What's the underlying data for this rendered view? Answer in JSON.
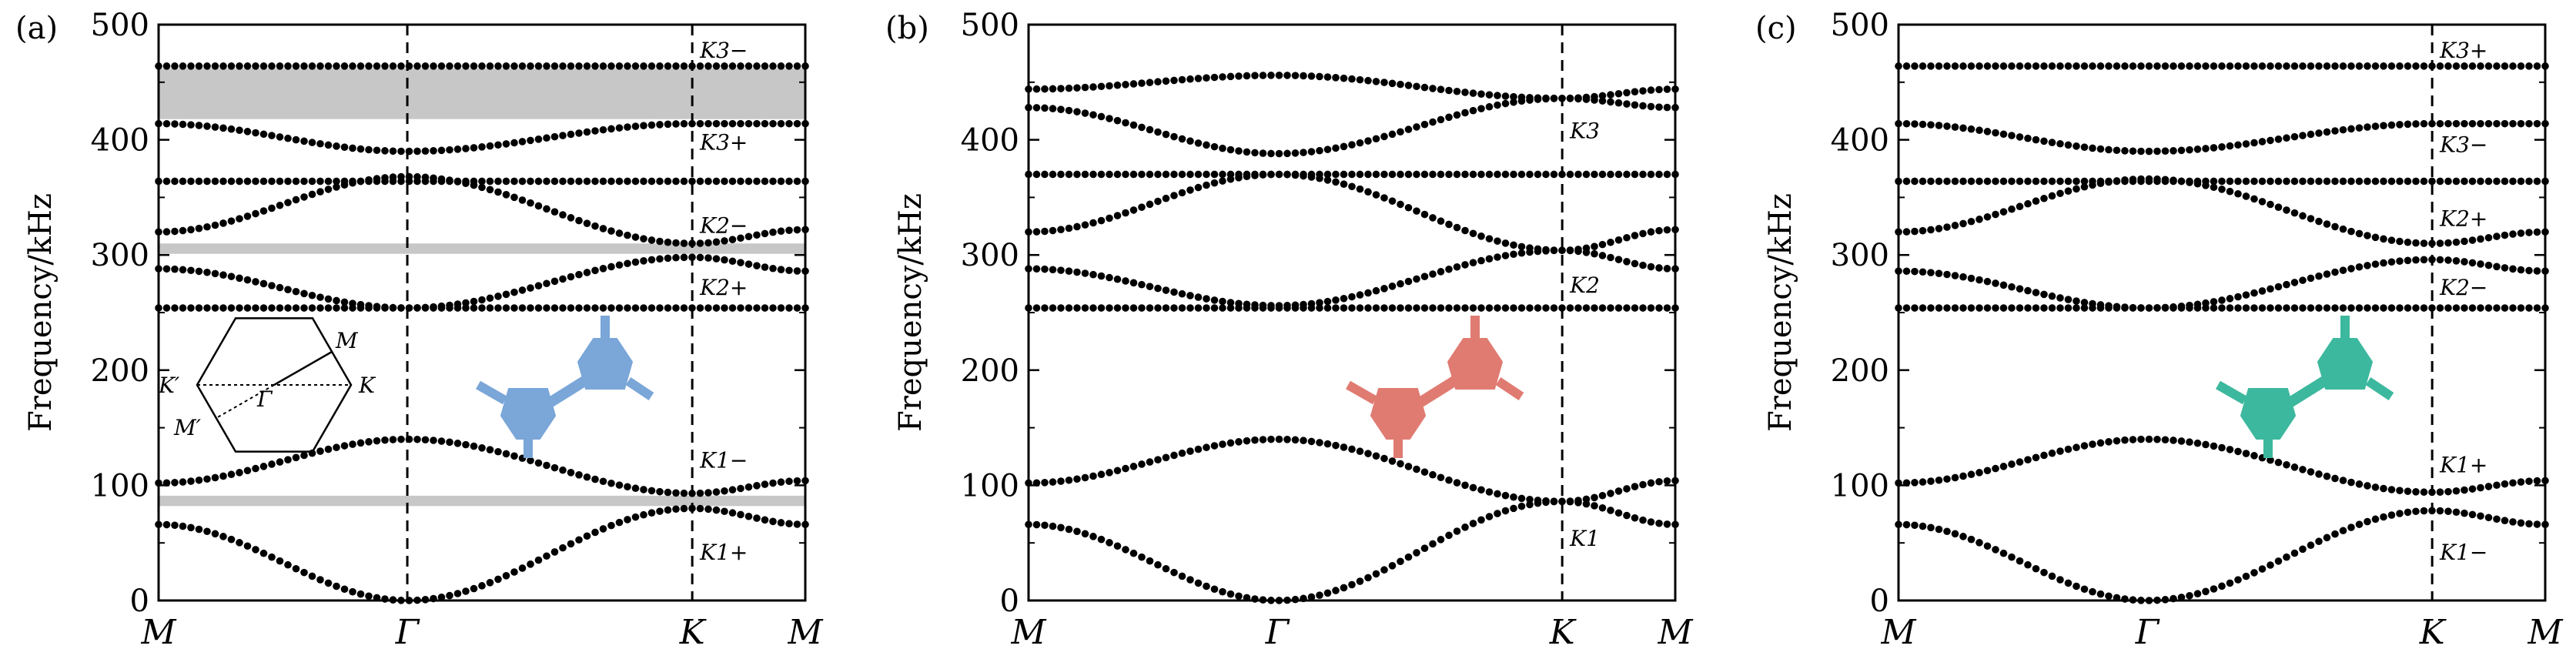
{
  "chart_data": [
    {
      "type": "line",
      "panel_label": "(a)",
      "ylabel": "Frequency/kHz",
      "ylim": [
        0,
        500
      ],
      "yticks": [
        "0",
        "100",
        "200",
        "300",
        "400",
        "500"
      ],
      "xticks": [
        "M",
        "Γ",
        "K",
        "M"
      ],
      "high_symmetry_lines": [
        "Γ",
        "K"
      ],
      "unit_color": "#7aa6d8",
      "gaps": [
        [
          418,
          462
        ],
        [
          301,
          310
        ],
        [
          82,
          91
        ]
      ],
      "band_labels": [
        {
          "text": "K3−",
          "y": 478
        },
        {
          "text": "K3+",
          "y": 398
        },
        {
          "text": "K2−",
          "y": 326
        },
        {
          "text": "K2+",
          "y": 272
        },
        {
          "text": "K1−",
          "y": 122
        },
        {
          "text": "K1+",
          "y": 42
        }
      ],
      "inset_labels": [
        "M",
        "K′",
        "Γ",
        "K",
        "M′"
      ],
      "bands": [
        {
          "M": 66,
          "G": 0,
          "K": 80,
          "M2": 66
        },
        {
          "M": 102,
          "G": 140,
          "K": 93,
          "M2": 104
        },
        {
          "M": 254,
          "G": 254,
          "K": 254,
          "M2": 254
        },
        {
          "M": 288,
          "G": 254,
          "K": 298,
          "M2": 286
        },
        {
          "M": 320,
          "G": 368,
          "K": 310,
          "M2": 322
        },
        {
          "M": 364,
          "G": 364,
          "K": 364,
          "M2": 364
        },
        {
          "M": 414,
          "G": 390,
          "K": 414,
          "M2": 414
        },
        {
          "M": 464,
          "G": 464,
          "K": 464,
          "M2": 464
        }
      ]
    },
    {
      "type": "line",
      "panel_label": "(b)",
      "ylabel": "Frequency/kHz",
      "ylim": [
        0,
        500
      ],
      "yticks": [
        "0",
        "100",
        "200",
        "300",
        "400",
        "500"
      ],
      "xticks": [
        "M",
        "Γ",
        "K",
        "M"
      ],
      "high_symmetry_lines": [
        "K"
      ],
      "unit_color": "#e07b72",
      "gaps": [],
      "band_labels": [
        {
          "text": "K3",
          "y": 408
        },
        {
          "text": "K2",
          "y": 274
        },
        {
          "text": "K1",
          "y": 54
        }
      ],
      "bands": [
        {
          "M": 66,
          "G": 0,
          "K": 86,
          "M2": 66
        },
        {
          "M": 102,
          "G": 140,
          "K": 86,
          "M2": 104
        },
        {
          "M": 254,
          "G": 254,
          "K": 254,
          "M2": 254
        },
        {
          "M": 288,
          "G": 256,
          "K": 304,
          "M2": 288
        },
        {
          "M": 320,
          "G": 370,
          "K": 304,
          "M2": 322
        },
        {
          "M": 370,
          "G": 370,
          "K": 370,
          "M2": 370
        },
        {
          "M": 428,
          "G": 388,
          "K": 436,
          "M2": 428
        },
        {
          "M": 444,
          "G": 456,
          "K": 436,
          "M2": 444
        }
      ]
    },
    {
      "type": "line",
      "panel_label": "(c)",
      "ylabel": "Frequency/kHz",
      "ylim": [
        0,
        500
      ],
      "yticks": [
        "0",
        "100",
        "200",
        "300",
        "400",
        "500"
      ],
      "xticks": [
        "M",
        "Γ",
        "K",
        "M"
      ],
      "high_symmetry_lines": [
        "K"
      ],
      "unit_color": "#3cb89e",
      "gaps": [],
      "band_labels": [
        {
          "text": "K3+",
          "y": 478
        },
        {
          "text": "K3−",
          "y": 396
        },
        {
          "text": "K2+",
          "y": 332
        },
        {
          "text": "K2−",
          "y": 272
        },
        {
          "text": "K1+",
          "y": 118
        },
        {
          "text": "K1−",
          "y": 42
        }
      ],
      "bands": [
        {
          "M": 66,
          "G": 0,
          "K": 78,
          "M2": 66
        },
        {
          "M": 102,
          "G": 140,
          "K": 94,
          "M2": 104
        },
        {
          "M": 254,
          "G": 254,
          "K": 254,
          "M2": 254
        },
        {
          "M": 286,
          "G": 254,
          "K": 296,
          "M2": 286
        },
        {
          "M": 320,
          "G": 366,
          "K": 310,
          "M2": 320
        },
        {
          "M": 364,
          "G": 364,
          "K": 364,
          "M2": 364
        },
        {
          "M": 414,
          "G": 390,
          "K": 414,
          "M2": 414
        },
        {
          "M": 464,
          "G": 464,
          "K": 464,
          "M2": 464
        }
      ]
    }
  ]
}
